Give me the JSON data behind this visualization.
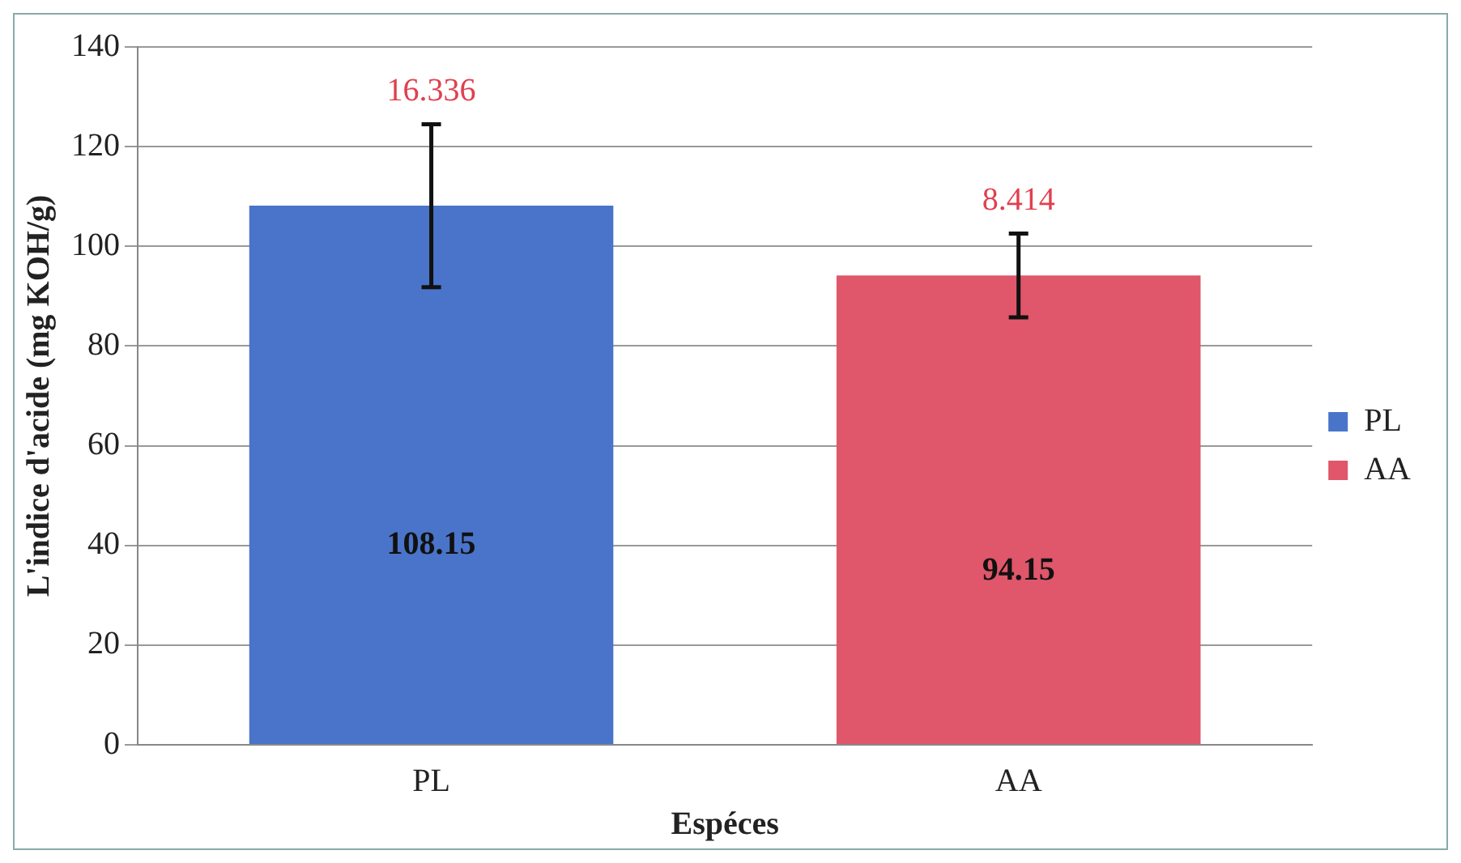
{
  "chart_data": {
    "type": "bar",
    "categories": [
      "PL",
      "AA"
    ],
    "series": [
      {
        "name": "PL",
        "color": "#4a74c9",
        "values": [
          108.15,
          null
        ],
        "errors": [
          16.336,
          null
        ]
      },
      {
        "name": "AA",
        "color": "#e0566a",
        "values": [
          null,
          94.15
        ],
        "errors": [
          null,
          8.414
        ]
      }
    ],
    "data_labels": true,
    "annotations": [
      {
        "text": "16.336",
        "x": "PL",
        "y": 124.5
      },
      {
        "text": "8.414",
        "x": "AA",
        "y": 102.6
      }
    ],
    "xlabel": "Espéces",
    "ylabel": "L'indice d'acide (mg KOH/g)",
    "ylim": [
      0,
      140
    ],
    "yticks": [
      0,
      20,
      40,
      60,
      80,
      100,
      120,
      140
    ],
    "grid": "y",
    "legend": "right"
  }
}
